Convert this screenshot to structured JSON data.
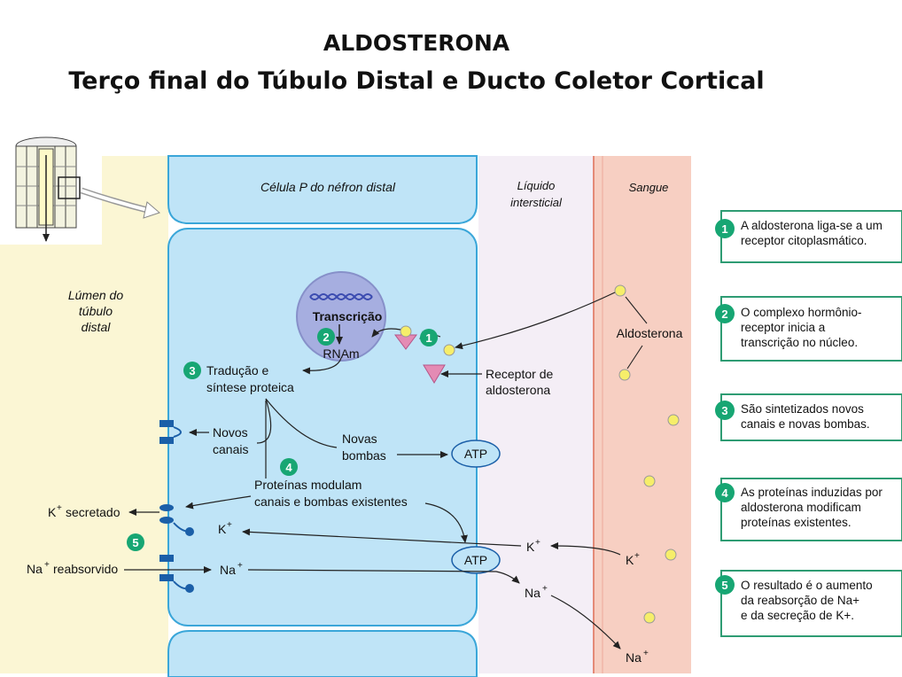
{
  "title": {
    "line1": "ALDOSTERONA",
    "line2": "Terço final do Túbulo Distal e Ducto Coletor Cortical"
  },
  "regions": {
    "cell_title": "Célula P do néfron distal",
    "interstitial_line1": "Líquido",
    "interstitial_line2": "intersticial",
    "blood": "Sangue",
    "lumen_line1": "Lúmen do",
    "lumen_line2": "túbulo",
    "lumen_line3": "distal"
  },
  "labels": {
    "transcription": "Transcrição",
    "rnam": "RNAm",
    "translation_line1": "Tradução e",
    "translation_line2": "síntese proteica",
    "new_channels_line1": "Novos",
    "new_channels_line2": "canais",
    "new_pumps_line1": "Novas",
    "new_pumps_line2": "bombas",
    "atp": "ATP",
    "proteins_line1": "Proteínas modulam",
    "proteins_line2": "canais e bombas existentes",
    "receptor_line1": "Receptor de",
    "receptor_line2": "aldosterona",
    "aldosterone": "Aldosterona",
    "k_secreted": "secretado",
    "na_reabsorbed": "reabsorvido",
    "k": "K",
    "na": "Na",
    "plus": "+"
  },
  "steps": [
    {
      "num": "1",
      "text_line1": "A aldosterona liga-se a um",
      "text_line2": "receptor citoplasmático.",
      "text_line3": ""
    },
    {
      "num": "2",
      "text_line1": "O complexo hormônio-",
      "text_line2": "receptor inicia a",
      "text_line3": "transcrição no núcleo."
    },
    {
      "num": "3",
      "text_line1": "São sintetizados novos",
      "text_line2": "canais e novas bombas.",
      "text_line3": ""
    },
    {
      "num": "4",
      "text_line1": "As proteínas induzidas por",
      "text_line2": "aldosterona modificam",
      "text_line3": "proteínas existentes."
    },
    {
      "num": "5",
      "text_line1": "O resultado é o aumento",
      "text_line2": "da reabsorção de  Na+",
      "text_line3": "e da secreção de K+."
    }
  ],
  "colors": {
    "cell": "#bfe4f7",
    "cell_border": "#3aa6d9",
    "lumen": "#fbf6d4",
    "interstitial": "#f4eef6",
    "blood": "#f7cfc2",
    "step_green": "#17a673",
    "aldo_dot": "#f6ee6a",
    "receptor": "#e48bb4",
    "channel": "#1b5fa8"
  }
}
